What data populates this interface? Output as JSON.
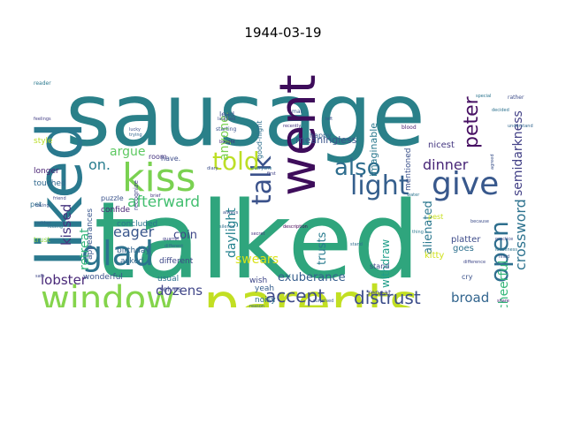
{
  "title": "1944-03-19",
  "words": [
    {
      "text": "sausage",
      "color": "#2a8089",
      "weight": 1.0
    },
    {
      "text": "talked",
      "color": "#2fa57d",
      "weight": 1.0
    },
    {
      "text": "parents",
      "color": "#c2df23",
      "weight": 0.8
    },
    {
      "text": "liked",
      "color": "#2a798e",
      "weight": 0.7
    },
    {
      "text": "window",
      "color": "#84d44b",
      "weight": 0.55
    },
    {
      "text": "went",
      "color": "#3e0d5b",
      "weight": 0.55
    },
    {
      "text": "kiss",
      "color": "#7ad151",
      "weight": 0.5
    },
    {
      "text": "glad",
      "color": "#2c738e",
      "weight": 0.45
    },
    {
      "text": "give",
      "color": "#38588c",
      "weight": 0.4
    },
    {
      "text": "light",
      "color": "#355f8d",
      "weight": 0.35
    },
    {
      "text": "talk",
      "color": "#3b528b",
      "weight": 0.35
    },
    {
      "text": "also",
      "color": "#2e6d8e",
      "weight": 0.33
    },
    {
      "text": "told",
      "color": "#bddf26",
      "weight": 0.33
    },
    {
      "text": "open",
      "color": "#2e6f8e",
      "weight": 0.33
    },
    {
      "text": "peter",
      "color": "#471063",
      "weight": 0.3
    },
    {
      "text": "accept",
      "color": "#3e4a89",
      "weight": 0.25
    },
    {
      "text": "distrust",
      "color": "#3d4e8a",
      "weight": 0.25
    },
    {
      "text": "afterward",
      "color": "#44bf70",
      "weight": 0.22
    },
    {
      "text": "eager",
      "color": "#39568c",
      "weight": 0.22
    },
    {
      "text": "dinner",
      "color": "#482677",
      "weight": 0.22
    },
    {
      "text": "on.",
      "color": "#287d8e",
      "weight": 0.22
    },
    {
      "text": "lobster",
      "color": "#482878",
      "weight": 0.2
    },
    {
      "text": "dozens",
      "color": "#404688",
      "weight": 0.2
    },
    {
      "text": "swears",
      "color": "#d8e219",
      "weight": 0.2
    },
    {
      "text": "exuberance",
      "color": "#365d8d",
      "weight": 0.18
    },
    {
      "text": "broad",
      "color": "#32658e",
      "weight": 0.18
    },
    {
      "text": "cheerful",
      "color": "#35b779",
      "weight": 0.18
    },
    {
      "text": "crossword",
      "color": "#2c728e",
      "weight": 0.2
    },
    {
      "text": "semidarkness",
      "color": "#424086",
      "weight": 0.18
    },
    {
      "text": "alienated",
      "color": "#2a778e",
      "weight": 0.16
    },
    {
      "text": "trusts",
      "color": "#297b8e",
      "weight": 0.16
    },
    {
      "text": "daylight",
      "color": "#26828e",
      "weight": 0.16
    },
    {
      "text": "kissed",
      "color": "#46337f",
      "weight": 0.15
    },
    {
      "text": "anyone.",
      "color": "#7ad151",
      "weight": 0.14
    },
    {
      "text": "argue",
      "color": "#5ec962",
      "weight": 0.14
    },
    {
      "text": "coin",
      "color": "#3f4788",
      "weight": 0.14
    },
    {
      "text": "retreat",
      "color": "#32b67a",
      "weight": 0.14
    },
    {
      "text": "withdraw",
      "color": "#1f9e89",
      "weight": 0.12
    },
    {
      "text": "imaginable",
      "color": "#2a788e",
      "weight": 0.11
    },
    {
      "text": "meaningless",
      "color": "#3a548c",
      "weight": 0.11
    },
    {
      "text": "nicest",
      "color": "#453781",
      "weight": 0.1
    },
    {
      "text": "platter",
      "color": "#3e4c8a",
      "weight": 0.1
    },
    {
      "text": "goes",
      "color": "#2d708e",
      "weight": 0.1
    },
    {
      "text": "kitty",
      "color": "#d0e11c",
      "weight": 0.09
    },
    {
      "text": "mentioned",
      "color": "#3b518b",
      "weight": 0.09
    },
    {
      "text": "good-night",
      "color": "#2e6e8e",
      "weight": 0.08
    },
    {
      "text": "wonderful",
      "color": "#3b528b",
      "weight": 0.09
    },
    {
      "text": "birthday",
      "color": "#33638d",
      "weight": 0.08
    },
    {
      "text": "concluded",
      "color": "#2b758e",
      "weight": 0.08
    },
    {
      "text": "appearances",
      "color": "#39568c",
      "weight": 0.08
    },
    {
      "text": "different",
      "color": "#3f4889",
      "weight": 0.08
    },
    {
      "text": "standard",
      "color": "#453882",
      "weight": 0.07
    },
    {
      "text": "usual",
      "color": "#2d718e",
      "weight": 0.08
    },
    {
      "text": "asked",
      "color": "#31678e",
      "weight": 0.08
    },
    {
      "text": "confide",
      "color": "#482475",
      "weight": 0.08
    },
    {
      "text": "puzzle",
      "color": "#3a538b",
      "weight": 0.07
    },
    {
      "text": "touched",
      "color": "#31688e",
      "weight": 0.08
    },
    {
      "text": "longer",
      "color": "#482173",
      "weight": 0.08
    },
    {
      "text": "style",
      "color": "#bade28",
      "weight": 0.08
    },
    {
      "text": "room",
      "color": "#463480",
      "weight": 0.07
    },
    {
      "text": "have.",
      "color": "#3d4d8a",
      "weight": 0.07
    },
    {
      "text": "recognize",
      "color": "#414487",
      "weight": 0.06
    },
    {
      "text": "noisy",
      "color": "#2c728e",
      "weight": 0.07
    },
    {
      "text": "yeah",
      "color": "#355e8d",
      "weight": 0.07
    },
    {
      "text": "selves",
      "color": "#3e4989",
      "weight": 0.06
    },
    {
      "text": "wish",
      "color": "#3f4788",
      "weight": 0.07
    },
    {
      "text": "stand",
      "color": "#3e4a89",
      "weight": 0.06
    },
    {
      "text": "repeat",
      "color": "#404588",
      "weight": 0.06
    },
    {
      "text": "pet",
      "color": "#2e6d8e",
      "weight": 0.06
    },
    {
      "text": "trust",
      "color": "#8ed645",
      "weight": 0.06
    },
    {
      "text": "lead",
      "color": "#3c4f8a",
      "weight": 0.06
    },
    {
      "text": "happy",
      "color": "#355f8d",
      "weight": 0.06
    },
    {
      "text": "cry",
      "color": "#3b528b",
      "weight": 0.06
    },
    {
      "text": "pest",
      "color": "#c8e020",
      "weight": 0.06
    },
    {
      "text": "starting",
      "color": "#3a548c",
      "weight": 0.05
    },
    {
      "text": "mat",
      "color": "#38588c",
      "weight": 0.05
    },
    {
      "text": "blood",
      "color": "#481c6e",
      "weight": 0.05
    },
    {
      "text": "reader",
      "color": "#2a788e",
      "weight": 0.05
    },
    {
      "text": "rather",
      "color": "#3d4d8a",
      "weight": 0.05
    },
    {
      "text": "feelings",
      "color": "#433e85",
      "weight": 0.05
    },
    {
      "text": "special",
      "color": "#2b748e",
      "weight": 0.05
    },
    {
      "text": "understand",
      "color": "#31668e",
      "weight": 0.05
    },
    {
      "text": "decided",
      "color": "#2c718e",
      "weight": 0.05
    },
    {
      "text": "left",
      "color": "#3a548c",
      "weight": 0.05
    },
    {
      "text": "laughed",
      "color": "#3f4788",
      "weight": 0.05
    },
    {
      "text": "recently",
      "color": "#463480",
      "weight": 0.05
    },
    {
      "text": "bought",
      "color": "#472c7a",
      "weight": 0.05
    },
    {
      "text": "diary",
      "color": "#3d4e8a",
      "weight": 0.05
    },
    {
      "text": "everyone",
      "color": "#2c728e",
      "weight": 0.05
    },
    {
      "text": "first",
      "color": "#414287",
      "weight": 0.05
    },
    {
      "text": "friend",
      "color": "#3f4889",
      "weight": 0.05
    },
    {
      "text": "brief",
      "color": "#453781",
      "weight": 0.05
    },
    {
      "text": "different",
      "color": "#32658e",
      "weight": 0.05
    },
    {
      "text": "always",
      "color": "#3b528b",
      "weight": 0.05
    },
    {
      "text": "silence",
      "color": "#2d708e",
      "weight": 0.05
    },
    {
      "text": "description",
      "color": "#440154",
      "weight": 0.05
    },
    {
      "text": "reason",
      "color": "#33638d",
      "weight": 0.05
    },
    {
      "text": "surprised",
      "color": "#38588c",
      "weight": 0.05
    },
    {
      "text": "difference",
      "color": "#3f4788",
      "weight": 0.05
    },
    {
      "text": "practice",
      "color": "#3e4a89",
      "weight": 0.05
    },
    {
      "text": "loneliness",
      "color": "#2c728e",
      "weight": 0.05
    },
    {
      "text": "filled",
      "color": "#3a548c",
      "weight": 0.05
    },
    {
      "text": "agreed",
      "color": "#3b528b",
      "weight": 0.05
    },
    {
      "text": "stand",
      "color": "#2e6d8e",
      "weight": 0.05
    },
    {
      "text": "share",
      "color": "#482475",
      "weight": 0.05
    },
    {
      "text": "thing",
      "color": "#2a788e",
      "weight": 0.05
    },
    {
      "text": "because",
      "color": "#3d4d8a",
      "weight": 0.05
    },
    {
      "text": "water",
      "color": "#2b748e",
      "weight": 0.05
    },
    {
      "text": "quarrel",
      "color": "#414487",
      "weight": 0.05
    },
    {
      "text": "secret",
      "color": "#463480",
      "weight": 0.05
    },
    {
      "text": "taking",
      "color": "#3a548c",
      "weight": 0.05
    },
    {
      "text": "neither",
      "color": "#33638d",
      "weight": 0.05
    },
    {
      "text": "safe",
      "color": "#3f4788",
      "weight": 0.05
    },
    {
      "text": "feeling",
      "color": "#2c728e",
      "weight": 0.05
    },
    {
      "text": "lucky",
      "color": "#3b528b",
      "weight": 0.05
    },
    {
      "text": "trying",
      "color": "#32658e",
      "weight": 0.05
    }
  ]
}
